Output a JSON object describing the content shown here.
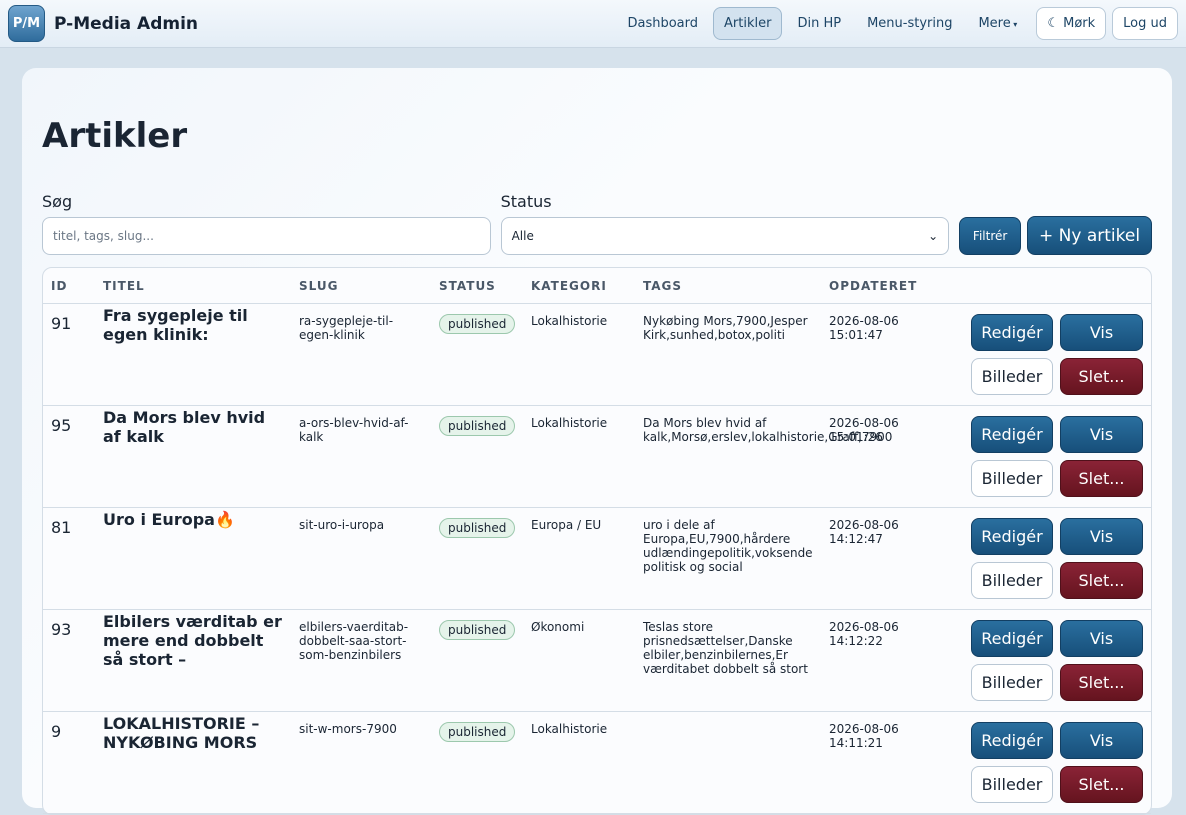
{
  "nav": {
    "logo": "P/M",
    "brand": "P-Media Admin",
    "links": [
      "Dashboard",
      "Artikler",
      "Din HP",
      "Menu-styring",
      "Mere"
    ],
    "theme": "☾ Mørk",
    "logout": "Log ud"
  },
  "page": {
    "title": "Artikler"
  },
  "filters": {
    "search_label": "Søg",
    "search_placeholder": "titel, tags, slug...",
    "status_label": "Status",
    "status_value": "Alle",
    "filter_button": "Filtrér",
    "new_button": "+ Ny artikel"
  },
  "table": {
    "headers": [
      "ID",
      "TITEL",
      "SLUG",
      "STATUS",
      "KATEGORI",
      "TAGS",
      "OPDATERET"
    ],
    "actions": [
      "Redigér",
      "Vis",
      "Billeder",
      "Slet..."
    ],
    "rows": [
      {
        "id": 91,
        "title": "Fra sygepleje til egen klinik:",
        "slug": "ra-sygepleje-til-egen-klinik",
        "status": "published",
        "category": "Lokalhistorie",
        "tags": "Nykøbing Mors,7900,Jesper Kirk,sunhed,botox,politi",
        "updated": "2026-08-06 15:01:47"
      },
      {
        "id": 95,
        "title": "Da Mors blev hvid af kalk",
        "slug": "a-ors-blev-hvid-af-kalk",
        "status": "published",
        "category": "Lokalhistorie",
        "tags": "Da Mors blev hvid af kalk,Morsø,erslev,lokalhistorie,Graff,7900",
        "updated": "2026-08-06 15:01:26"
      },
      {
        "id": 81,
        "title": "Uro i Europa🔥",
        "slug": "sit-uro-i-uropa",
        "status": "published",
        "category": "Europa / EU",
        "tags": "uro i dele af Europa,EU,7900,hårdere udlændingepolitik,voksende politisk og social",
        "updated": "2026-08-06 14:12:47"
      },
      {
        "id": 93,
        "title": "Elbilers værditab er mere end dobbelt så stort –",
        "slug": "elbilers-vaerditab-dobbelt-saa-stort-som-benzinbilers",
        "status": "published",
        "category": "Økonomi",
        "tags": "Teslas store prisnedsættelser,Danske elbiler,benzinbilernes,Er værditabet dobbelt så stort",
        "updated": "2026-08-06 14:12:22"
      },
      {
        "id": 9,
        "title": "LOKALHISTORIE – NYKØBING MORS",
        "slug": "sit-w-mors-7900",
        "status": "published",
        "category": "Lokalhistorie",
        "updated": "2026-08-06 14:11:21"
      }
    ]
  }
}
